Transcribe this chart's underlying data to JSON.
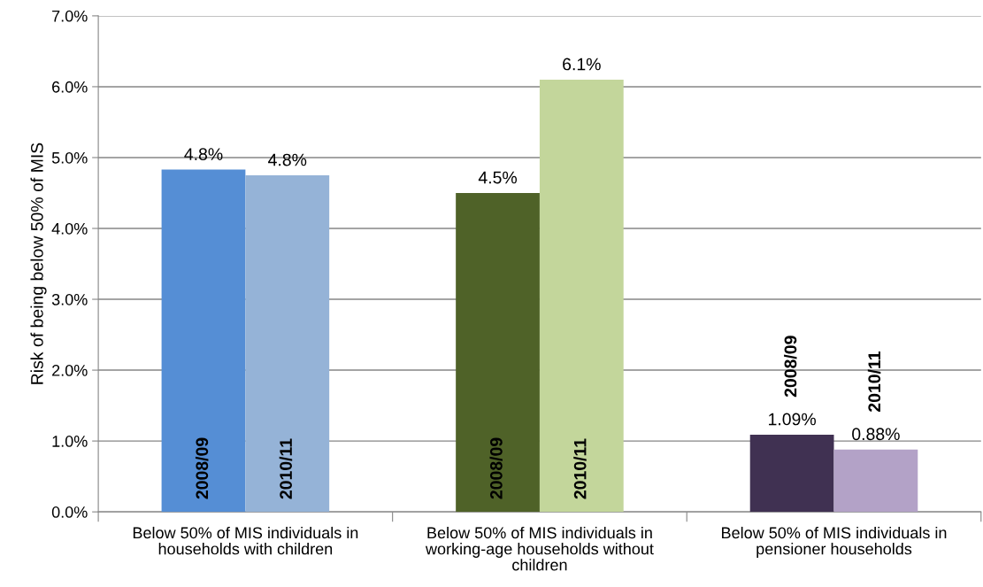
{
  "chart_data": {
    "type": "bar",
    "ylabel": "Risk of being below 50% of MIS",
    "categories": [
      "Below 50% of MIS individuals in households with children",
      "Below 50% of MIS individuals in working-age households without children",
      "Below 50% of MIS individuals in pensioner households"
    ],
    "series": [
      {
        "name": "2008/09",
        "colors": [
          "#558ed5",
          "#4f6228",
          "#403152"
        ],
        "values": [
          4.83,
          4.5,
          1.09
        ],
        "value_labels": [
          "4.8%",
          "4.5%",
          "1.09%"
        ]
      },
      {
        "name": "2010/11",
        "colors": [
          "#95b3d7",
          "#c3d69b",
          "#b3a2c7"
        ],
        "values": [
          4.75,
          6.1,
          0.88
        ],
        "value_labels": [
          "4.8%",
          "6.1%",
          "0.88%"
        ]
      }
    ],
    "ylim": [
      0,
      7
    ],
    "yticks": [
      {
        "value": 0,
        "label": "0.0%"
      },
      {
        "value": 1,
        "label": "1.0%"
      },
      {
        "value": 2,
        "label": "2.0%"
      },
      {
        "value": 3,
        "label": "3.0%"
      },
      {
        "value": 4,
        "label": "4.0%"
      },
      {
        "value": 5,
        "label": "5.0%"
      },
      {
        "value": 6,
        "label": "6.0%"
      },
      {
        "value": 7,
        "label": "7.0%"
      }
    ],
    "grid": "y"
  }
}
